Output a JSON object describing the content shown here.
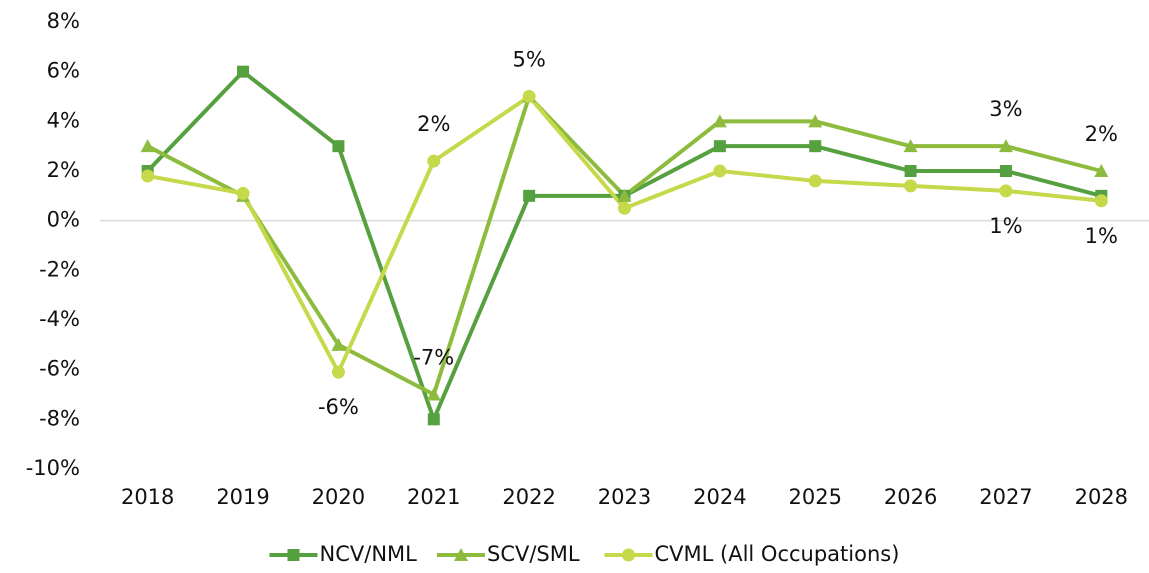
{
  "chart_data": {
    "type": "line",
    "categories": [
      "2018",
      "2019",
      "2020",
      "2021",
      "2022",
      "2023",
      "2024",
      "2025",
      "2026",
      "2027",
      "2028"
    ],
    "ylim": [
      -10,
      8
    ],
    "yticks": [
      {
        "value": -10,
        "label": "-10%"
      },
      {
        "value": -8,
        "label": "-8%"
      },
      {
        "value": -6,
        "label": "-6%"
      },
      {
        "value": -4,
        "label": "-4%"
      },
      {
        "value": -2,
        "label": "-2%"
      },
      {
        "value": 0,
        "label": "0%"
      },
      {
        "value": 2,
        "label": "2%"
      },
      {
        "value": 4,
        "label": "4%"
      },
      {
        "value": 6,
        "label": "6%"
      },
      {
        "value": 8,
        "label": "8%"
      }
    ],
    "grid": false,
    "legend": "bottom",
    "series": [
      {
        "name": "NCV/NML",
        "color": "#55a03f",
        "marker": "square",
        "values": [
          2,
          6,
          3,
          -8,
          1,
          1,
          3,
          3,
          2,
          2,
          1
        ]
      },
      {
        "name": "SCV/SML",
        "color": "#8dbb3e",
        "marker": "triangle",
        "values": [
          3,
          1,
          -5,
          -7,
          5,
          1,
          4,
          4,
          3,
          3,
          2
        ],
        "value_labels": [
          null,
          null,
          null,
          "-7%",
          null,
          null,
          null,
          null,
          null,
          "3%",
          "2%"
        ]
      },
      {
        "name": "CVML (All Occupations)",
        "color": "#c5d94a",
        "marker": "circle",
        "values": [
          1.8,
          1.1,
          -6.1,
          2.4,
          5.0,
          0.5,
          2.0,
          1.6,
          1.4,
          1.2,
          0.8
        ],
        "value_labels": [
          null,
          null,
          "-6%",
          "2%",
          "5%",
          null,
          null,
          null,
          null,
          "1%",
          "1%"
        ]
      }
    ]
  }
}
